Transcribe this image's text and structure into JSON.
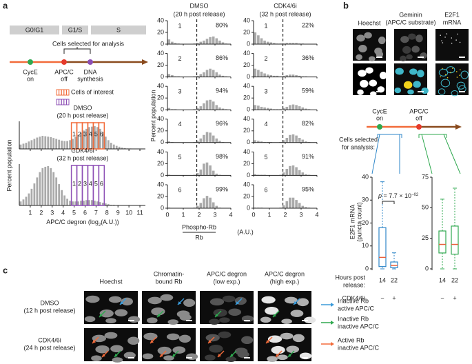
{
  "panel_a": {
    "label": "a",
    "phases": [
      "G0/G1",
      "G1/S",
      "S"
    ],
    "selection_label": "Cells selected for analysis",
    "markers": [
      {
        "lines": [
          "CycE",
          "on"
        ],
        "color": "#2fa84f"
      },
      {
        "lines": [
          "APC/C",
          "off"
        ],
        "color": "#e53b2c"
      },
      {
        "lines": [
          "DNA",
          "synthesis"
        ],
        "color": "#8d4fb5"
      }
    ],
    "legend": {
      "title": "Cells of interest",
      "colors": [
        "#f26b3a",
        "#8d4fb5"
      ]
    },
    "histograms": {
      "type": "histogram",
      "ylabel": "Percent population",
      "xlabel": [
        "APC/C degron (log",
        "2",
        "(A.U.))"
      ],
      "xlim": [
        0,
        11.5
      ],
      "ylim": [
        0,
        6
      ],
      "xticks": [
        1,
        2,
        3,
        4,
        5,
        6,
        7,
        8,
        9,
        10,
        11
      ],
      "color": "#aaaaaa",
      "bins": [
        0,
        0.25,
        0.5,
        0.75,
        1,
        1.25,
        1.5,
        1.75,
        2,
        2.25,
        2.5,
        2.75,
        3,
        3.25,
        3.5,
        3.75,
        4,
        4.25,
        4.5,
        4.75,
        5,
        5.25,
        5.5,
        5.75,
        6,
        6.25,
        6.5,
        6.75,
        7,
        7.25,
        7.5,
        7.75,
        8,
        8.25,
        8.5,
        8.75,
        9,
        9.25,
        9.5,
        9.75,
        10,
        10.25,
        10.5,
        10.75,
        11
      ],
      "selection_edges": [
        4.75,
        5.25,
        5.75,
        6.25,
        6.75,
        7.25,
        7.75
      ],
      "selection_labels": [
        "1",
        "2",
        "3",
        "4",
        "5",
        "6"
      ],
      "panels": [
        {
          "title": [
            "DMSO",
            "(20 h post release)"
          ],
          "selection_color": "#f26b3a",
          "values": [
            1.0,
            1.2,
            1.4,
            1.7,
            2.0,
            2.3,
            2.6,
            2.8,
            3.0,
            2.9,
            2.8,
            2.7,
            2.5,
            2.3,
            2.1,
            1.9,
            1.8,
            1.8,
            2.0,
            2.3,
            2.7,
            3.2,
            3.7,
            4.2,
            4.6,
            5.0,
            5.1,
            5.2,
            5.0,
            4.6,
            3.9,
            2.8,
            2.0,
            1.4,
            1.0,
            0.7,
            0.5,
            0.3,
            0.2,
            0.1,
            0.1,
            0,
            0,
            0
          ]
        },
        {
          "title": [
            "CDK4/6i",
            "(32 h post release)"
          ],
          "selection_color": "#8d4fb5",
          "values": [
            0.6,
            0.9,
            1.3,
            1.8,
            2.5,
            3.3,
            4.2,
            5.0,
            5.6,
            5.8,
            5.9,
            5.6,
            5.0,
            4.2,
            3.2,
            2.3,
            1.5,
            1.0,
            0.7,
            0.6,
            0.6,
            0.6,
            0.7,
            0.7,
            0.8,
            0.8,
            0.8,
            0.7,
            0.6,
            0.5,
            0.4,
            0.3,
            0.2,
            0.1,
            0.1,
            0,
            0,
            0,
            0,
            0,
            0,
            0,
            0,
            0
          ]
        }
      ]
    },
    "grid": {
      "type": "histogram",
      "ylabel": "Percent population",
      "xlabel_numerator": "Phospho-Rb",
      "xlabel_denominator": "Rb",
      "xlabel_unit": "(A.U.)",
      "xlim": [
        0,
        4
      ],
      "ylim": [
        0,
        40
      ],
      "xticks": [
        0,
        1,
        2,
        3,
        4
      ],
      "yticks": [
        0,
        20,
        40
      ],
      "threshold": 1.85,
      "color": "#aaaaaa",
      "bins": [
        0,
        0.2,
        0.4,
        0.6,
        0.8,
        1.0,
        1.2,
        1.4,
        1.6,
        1.8,
        2.0,
        2.2,
        2.4,
        2.6,
        2.8,
        3.0,
        3.2,
        3.4,
        3.6,
        3.8,
        4.0
      ],
      "columns": [
        {
          "title": [
            "DMSO",
            "(20 h post release)"
          ],
          "label_color": "#f26b3a",
          "rows": [
            {
              "label": "1",
              "percent": 80,
              "percent_label": "80%",
              "values": [
                8,
                4,
                2,
                1,
                0,
                0,
                0,
                0,
                1,
                2,
                4,
                6,
                9,
                12,
                13,
                10,
                6,
                3,
                1,
                0
              ]
            },
            {
              "label": "2",
              "percent": 86,
              "percent_label": "86%",
              "values": [
                5,
                3,
                1,
                1,
                0,
                0,
                0,
                0,
                1,
                2,
                5,
                8,
                12,
                14,
                12,
                8,
                4,
                2,
                1,
                0
              ]
            },
            {
              "label": "3",
              "percent": 94,
              "percent_label": "94%",
              "values": [
                3,
                1,
                1,
                0,
                0,
                0,
                0,
                0,
                1,
                3,
                6,
                11,
                16,
                17,
                14,
                8,
                4,
                2,
                1,
                0
              ]
            },
            {
              "label": "4",
              "percent": 96,
              "percent_label": "96%",
              "values": [
                2,
                1,
                0,
                0,
                0,
                0,
                0,
                0,
                1,
                3,
                7,
                13,
                18,
                17,
                12,
                7,
                3,
                1,
                0,
                0
              ]
            },
            {
              "label": "5",
              "percent": 98,
              "percent_label": "98%",
              "values": [
                1,
                0,
                0,
                0,
                0,
                0,
                0,
                0,
                1,
                4,
                10,
                20,
                22,
                17,
                8,
                3,
                1,
                0,
                0,
                0
              ]
            },
            {
              "label": "6",
              "percent": 99,
              "percent_label": "99%",
              "values": [
                1,
                0,
                0,
                0,
                0,
                0,
                0,
                0,
                1,
                4,
                9,
                17,
                21,
                18,
                10,
                4,
                1,
                0,
                0,
                0
              ]
            }
          ]
        },
        {
          "title": [
            "CDK4/6i",
            "(32 h post release)"
          ],
          "label_color": "#8d4fb5",
          "rows": [
            {
              "label": "1",
              "percent": 22,
              "percent_label": "22%",
              "values": [
                20,
                15,
                10,
                6,
                4,
                3,
                2,
                1,
                1,
                1,
                2,
                2,
                2,
                2,
                1,
                1,
                0,
                0,
                0,
                0
              ]
            },
            {
              "label": "2",
              "percent": 36,
              "percent_label": "36%",
              "values": [
                14,
                12,
                9,
                6,
                4,
                3,
                2,
                2,
                1,
                2,
                3,
                4,
                4,
                3,
                2,
                1,
                1,
                0,
                0,
                0
              ]
            },
            {
              "label": "3",
              "percent": 59,
              "percent_label": "59%",
              "values": [
                8,
                7,
                5,
                4,
                3,
                2,
                1,
                1,
                1,
                3,
                5,
                8,
                9,
                8,
                6,
                4,
                2,
                1,
                0,
                0
              ]
            },
            {
              "label": "4",
              "percent": 82,
              "percent_label": "82%",
              "values": [
                4,
                3,
                2,
                1,
                1,
                1,
                0,
                0,
                1,
                4,
                8,
                13,
                14,
                12,
                8,
                5,
                2,
                1,
                0,
                0
              ]
            },
            {
              "label": "5",
              "percent": 91,
              "percent_label": "91%",
              "values": [
                2,
                1,
                1,
                1,
                0,
                0,
                0,
                0,
                1,
                5,
                11,
                16,
                17,
                14,
                9,
                5,
                2,
                1,
                0,
                0
              ]
            },
            {
              "label": "6",
              "percent": 95,
              "percent_label": "95%",
              "values": [
                1,
                1,
                1,
                0,
                0,
                0,
                0,
                0,
                1,
                5,
                12,
                18,
                18,
                14,
                9,
                4,
                2,
                1,
                0,
                0
              ]
            }
          ]
        }
      ]
    }
  },
  "panel_b": {
    "label": "b",
    "image_titles": [
      [
        "Hoechst"
      ],
      [
        "Geminin",
        "(APC/C substrate)"
      ],
      [
        "E2F1",
        "mRNA"
      ]
    ],
    "markers": [
      {
        "lines": [
          "CycE",
          "on"
        ],
        "color": "#2fa84f"
      },
      {
        "lines": [
          "APC/C",
          "off"
        ],
        "color": "#e53b2c"
      }
    ],
    "selection_lines": [
      "Cells selected",
      "for analysis:"
    ],
    "boxplot": {
      "type": "box",
      "ylabel": [
        "E2F1 mRNA",
        "(puncta count)"
      ],
      "median_color": "#e8603c",
      "p_value": {
        "symbol": "p",
        "text": " = 7.7 × 10",
        "exponent": "−02"
      },
      "panels": [
        {
          "color": "#2e86c8",
          "ylim": [
            0,
            40
          ],
          "yticks": [
            0,
            10,
            20,
            30,
            40
          ],
          "boxes": [
            {
              "min": 0,
              "q1": 1,
              "median": 5,
              "q3": 18,
              "max": 38
            },
            {
              "min": 0,
              "q1": 0.5,
              "median": 1.5,
              "q3": 3,
              "max": 7
            }
          ]
        },
        {
          "color": "#2fa84f",
          "ylim": [
            0,
            75
          ],
          "yticks": [
            0,
            25,
            50,
            75
          ],
          "boxes": [
            {
              "min": 0,
              "q1": 13,
              "median": 20,
              "q3": 31,
              "max": 57
            },
            {
              "min": 0,
              "q1": 12,
              "median": 20,
              "q3": 35,
              "max": 66
            }
          ]
        }
      ],
      "hours_label": [
        "Hours post",
        "release:"
      ],
      "hours": [
        "14",
        "22"
      ],
      "treatment_label": "CDK4/6i",
      "treatment": [
        "−",
        "+"
      ]
    }
  },
  "panel_c": {
    "label": "c",
    "columns": [
      [
        "Hoechst"
      ],
      [
        "Chromatin-",
        "bound Rb"
      ],
      [
        "APC/C degron",
        "(low exp.)"
      ],
      [
        "APC/C degron",
        "(high exp.)"
      ]
    ],
    "rows": [
      [
        "DMSO",
        "(12 h post release)"
      ],
      [
        "CDK4/6i",
        "(24 h post release)"
      ]
    ],
    "legend": [
      {
        "lines": [
          "Inactive Rb",
          "active APC/C"
        ],
        "color": "#3a9ad9"
      },
      {
        "lines": [
          "Inactive Rb",
          "inactive APC/C"
        ],
        "color": "#2fa84f"
      },
      {
        "lines": [
          "Active Rb",
          "inactive APC/C"
        ],
        "color": "#f26b3a"
      }
    ]
  }
}
